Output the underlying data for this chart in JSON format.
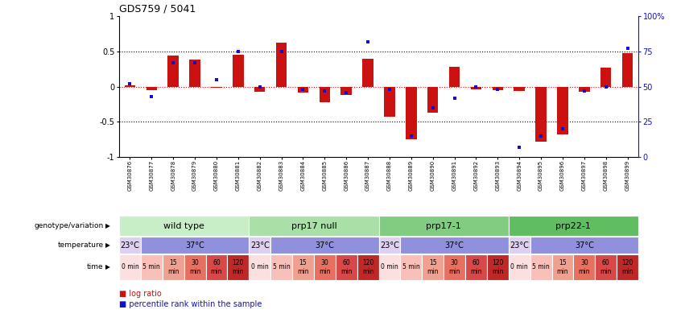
{
  "title": "GDS759 / 5041",
  "samples": [
    "GSM30876",
    "GSM30877",
    "GSM30878",
    "GSM30879",
    "GSM30880",
    "GSM30881",
    "GSM30882",
    "GSM30883",
    "GSM30884",
    "GSM30885",
    "GSM30886",
    "GSM30887",
    "GSM30888",
    "GSM30889",
    "GSM30890",
    "GSM30891",
    "GSM30892",
    "GSM30893",
    "GSM30894",
    "GSM30895",
    "GSM30896",
    "GSM30897",
    "GSM30898",
    "GSM30899"
  ],
  "log_ratio": [
    0.02,
    -0.05,
    0.44,
    0.38,
    -0.02,
    0.45,
    -0.07,
    0.62,
    -0.08,
    -0.22,
    -0.12,
    0.4,
    -0.43,
    -0.75,
    -0.37,
    0.28,
    -0.04,
    -0.05,
    -0.06,
    -0.78,
    -0.68,
    -0.07,
    0.27,
    0.47
  ],
  "percentile_rank": [
    52,
    43,
    67,
    67,
    55,
    75,
    50,
    75,
    48,
    47,
    46,
    82,
    48,
    15,
    35,
    42,
    50,
    48,
    7,
    15,
    20,
    47,
    50,
    77
  ],
  "genotype_groups": [
    {
      "label": "wild type",
      "start": 0,
      "end": 6,
      "color": "#c8eec8"
    },
    {
      "label": "prp17 null",
      "start": 6,
      "end": 12,
      "color": "#a8e0a8"
    },
    {
      "label": "prp17-1",
      "start": 12,
      "end": 18,
      "color": "#80cc80"
    },
    {
      "label": "prp22-1",
      "start": 18,
      "end": 24,
      "color": "#60be60"
    }
  ],
  "temperature_groups": [
    {
      "label": "23°C",
      "start": 0,
      "end": 1,
      "color": "#ddd0f0"
    },
    {
      "label": "37°C",
      "start": 1,
      "end": 6,
      "color": "#9090dd"
    },
    {
      "label": "23°C",
      "start": 6,
      "end": 7,
      "color": "#ddd0f0"
    },
    {
      "label": "37°C",
      "start": 7,
      "end": 12,
      "color": "#9090dd"
    },
    {
      "label": "23°C",
      "start": 12,
      "end": 13,
      "color": "#ddd0f0"
    },
    {
      "label": "37°C",
      "start": 13,
      "end": 18,
      "color": "#9090dd"
    },
    {
      "label": "23°C",
      "start": 18,
      "end": 19,
      "color": "#ddd0f0"
    },
    {
      "label": "37°C",
      "start": 19,
      "end": 24,
      "color": "#9090dd"
    }
  ],
  "time_groups": [
    {
      "label": "0 min",
      "start": 0,
      "end": 1,
      "color": "#fce0e0"
    },
    {
      "label": "5 min",
      "start": 1,
      "end": 2,
      "color": "#f8c0b8"
    },
    {
      "label": "15\nmin",
      "start": 2,
      "end": 3,
      "color": "#f0a090"
    },
    {
      "label": "30\nmin",
      "start": 3,
      "end": 4,
      "color": "#e87060"
    },
    {
      "label": "60\nmin",
      "start": 4,
      "end": 5,
      "color": "#d84848"
    },
    {
      "label": "120\nmin",
      "start": 5,
      "end": 6,
      "color": "#c02828"
    },
    {
      "label": "0 min",
      "start": 6,
      "end": 7,
      "color": "#fce0e0"
    },
    {
      "label": "5 min",
      "start": 7,
      "end": 8,
      "color": "#f8c0b8"
    },
    {
      "label": "15\nmin",
      "start": 8,
      "end": 9,
      "color": "#f0a090"
    },
    {
      "label": "30\nmin",
      "start": 9,
      "end": 10,
      "color": "#e87060"
    },
    {
      "label": "60\nmin",
      "start": 10,
      "end": 11,
      "color": "#d84848"
    },
    {
      "label": "120\nmin",
      "start": 11,
      "end": 12,
      "color": "#c02828"
    },
    {
      "label": "0 min",
      "start": 12,
      "end": 13,
      "color": "#fce0e0"
    },
    {
      "label": "5 min",
      "start": 13,
      "end": 14,
      "color": "#f8c0b8"
    },
    {
      "label": "15\nmin",
      "start": 14,
      "end": 15,
      "color": "#f0a090"
    },
    {
      "label": "30\nmin",
      "start": 15,
      "end": 16,
      "color": "#e87060"
    },
    {
      "label": "60\nmin",
      "start": 16,
      "end": 17,
      "color": "#d84848"
    },
    {
      "label": "120\nmin",
      "start": 17,
      "end": 18,
      "color": "#c02828"
    },
    {
      "label": "0 min",
      "start": 18,
      "end": 19,
      "color": "#fce0e0"
    },
    {
      "label": "5 min",
      "start": 19,
      "end": 20,
      "color": "#f8c0b8"
    },
    {
      "label": "15\nmin",
      "start": 20,
      "end": 21,
      "color": "#f0a090"
    },
    {
      "label": "30\nmin",
      "start": 21,
      "end": 22,
      "color": "#e87060"
    },
    {
      "label": "60\nmin",
      "start": 22,
      "end": 23,
      "color": "#d84848"
    },
    {
      "label": "120\nmin",
      "start": 23,
      "end": 24,
      "color": "#c02828"
    }
  ],
  "bar_color": "#cc1111",
  "dot_color": "#1111cc",
  "bg_color": "#ffffff",
  "ylim_left": [
    -1.0,
    1.0
  ],
  "ylim_right": [
    0,
    100
  ],
  "yticks_left": [
    -1.0,
    -0.5,
    0.0,
    0.5,
    1.0
  ],
  "ytick_labels_left": [
    "-1",
    "-0.5",
    "0",
    "0.5",
    "1"
  ],
  "yticks_right": [
    0,
    25,
    50,
    75,
    100
  ],
  "ytick_labels_right": [
    "0",
    "25",
    "50",
    "75",
    "100%"
  ],
  "row_labels": [
    "genotype/variation",
    "temperature",
    "time"
  ],
  "legend_items": [
    {
      "color": "#cc1111",
      "label": "log ratio"
    },
    {
      "color": "#1111cc",
      "label": "percentile rank within the sample"
    }
  ]
}
